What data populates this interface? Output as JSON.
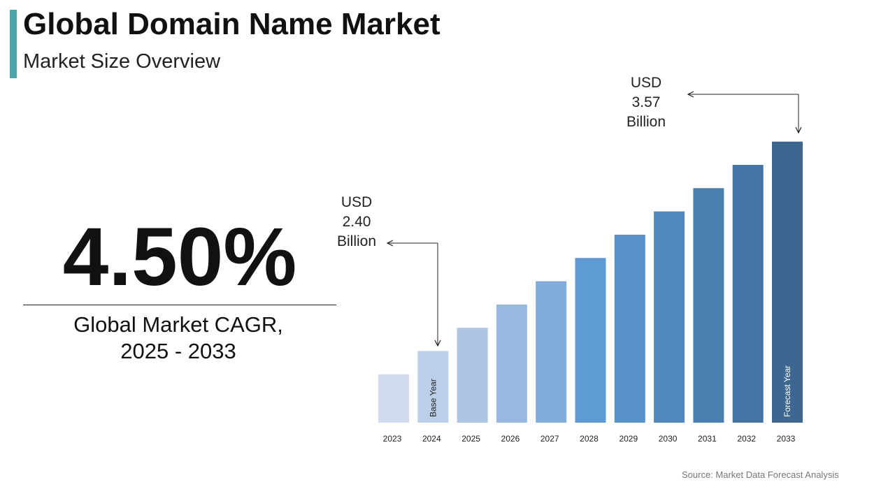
{
  "chart_data": {
    "type": "bar",
    "title": "Global Domain Name Market",
    "subtitle": "Market Size Overview",
    "kpi_value": "4.50%",
    "kpi_label": "Global Market CAGR, 2025 - 2033",
    "source": "Source: Market Data Forecast Analysis",
    "categories": [
      "2023",
      "2024",
      "2025",
      "2026",
      "2027",
      "2028",
      "2029",
      "2030",
      "2031",
      "2032",
      "2033"
    ],
    "values": [
      2.27,
      2.4,
      2.53,
      2.66,
      2.79,
      2.92,
      3.05,
      3.18,
      3.31,
      3.44,
      3.57
    ],
    "value_labels": [
      null,
      "USD 2.40 Billion",
      null,
      null,
      null,
      null,
      null,
      null,
      null,
      null,
      "USD 3.57 Billion"
    ],
    "bar_labels": [
      null,
      "Base Year",
      null,
      null,
      null,
      null,
      null,
      null,
      null,
      null,
      "Forecast Year"
    ],
    "colors": [
      "#d0dcee",
      "#bccfe8",
      "#adc6e5",
      "#98b9df",
      "#81acdb",
      "#5e9bd5",
      "#5891c9",
      "#5088bd",
      "#4a7fb2",
      "#4474a3",
      "#3d6790"
    ],
    "ylim": [
      2.0,
      3.6
    ]
  }
}
